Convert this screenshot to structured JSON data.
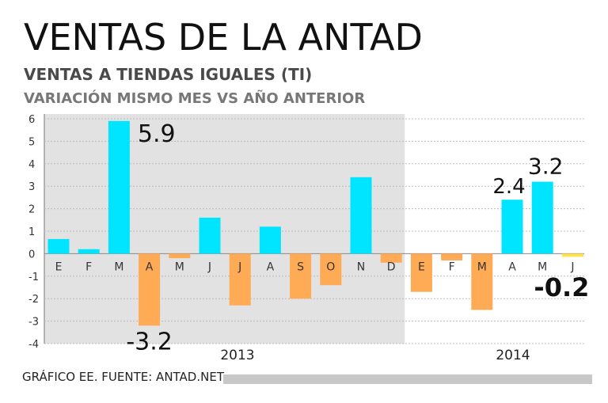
{
  "header": {
    "title": "VENTAS DE LA ANTAD",
    "subtitle": "VENTAS A TIENDAS IGUALES (TI)",
    "subtitle2": "VARIACIÓN MISMO MES VS AÑO ANTERIOR"
  },
  "footer": {
    "source": "GRÁFICO EE. FUENTE: ANTAD.NET"
  },
  "colors": {
    "positive": "#00e5ff",
    "negative": "#ffaa55",
    "latest": "#ffe44d",
    "shade": "#e2e2e2",
    "grid": "#bbbbbb"
  },
  "chart_data": {
    "type": "bar",
    "title": "VENTAS DE LA ANTAD",
    "xlabel": "",
    "ylabel": "",
    "ylim": [
      -4,
      6
    ],
    "yticks": [
      "6",
      "5",
      "4",
      "3",
      "2",
      "1",
      "0",
      "-1",
      "-2",
      "-3",
      "-4"
    ],
    "years": [
      "2013",
      "2014"
    ],
    "categories": [
      "E",
      "F",
      "M",
      "A",
      "M",
      "J",
      "J",
      "A",
      "S",
      "O",
      "N",
      "D",
      "E",
      "F",
      "M",
      "A",
      "M",
      "J"
    ],
    "values": [
      0.65,
      0.2,
      5.9,
      -3.2,
      -0.2,
      1.6,
      -2.3,
      1.2,
      -2.0,
      -1.4,
      3.4,
      -0.4,
      -1.7,
      -0.3,
      -2.5,
      2.4,
      3.2,
      -0.2
    ],
    "data_labels": [
      {
        "index": 2,
        "text": "5.9"
      },
      {
        "index": 3,
        "text": "-3.2"
      },
      {
        "index": 15,
        "text": "2.4"
      },
      {
        "index": 16,
        "text": "3.2"
      },
      {
        "index": 17,
        "text": "-0.2"
      }
    ]
  }
}
